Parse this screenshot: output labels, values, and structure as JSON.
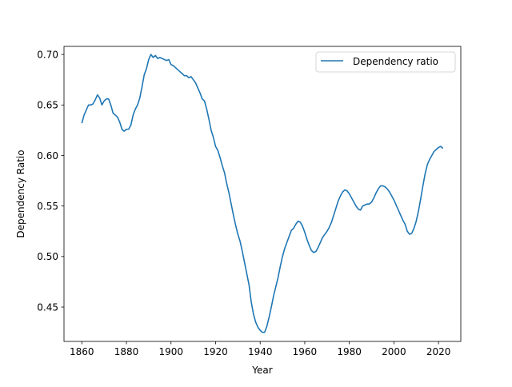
{
  "chart_data": {
    "type": "line",
    "xlabel": "Year",
    "ylabel": "Dependency Ratio",
    "xlim": [
      1852,
      2030
    ],
    "ylim": [
      0.416,
      0.708
    ],
    "xticks": [
      1860,
      1880,
      1900,
      1920,
      1940,
      1960,
      1980,
      2000,
      2020
    ],
    "yticks": [
      0.45,
      0.5,
      0.55,
      0.6,
      0.65,
      0.7
    ],
    "xtick_labels": [
      "1860",
      "1880",
      "1900",
      "1920",
      "1940",
      "1960",
      "1980",
      "2000",
      "2020"
    ],
    "ytick_labels": [
      "0.45",
      "0.50",
      "0.55",
      "0.60",
      "0.65",
      "0.70"
    ],
    "grid": false,
    "legend": {
      "position": "top-right"
    },
    "series": [
      {
        "name": "Dependency ratio",
        "color": "#1f77b4",
        "x": [
          1860,
          1861,
          1862,
          1863,
          1864,
          1865,
          1866,
          1867,
          1868,
          1869,
          1870,
          1871,
          1872,
          1873,
          1874,
          1875,
          1876,
          1877,
          1878,
          1879,
          1880,
          1881,
          1882,
          1883,
          1884,
          1885,
          1886,
          1887,
          1888,
          1889,
          1890,
          1891,
          1892,
          1893,
          1894,
          1895,
          1896,
          1897,
          1898,
          1899,
          1900,
          1901,
          1902,
          1903,
          1904,
          1905,
          1906,
          1907,
          1908,
          1909,
          1910,
          1911,
          1912,
          1913,
          1914,
          1915,
          1916,
          1917,
          1918,
          1919,
          1920,
          1921,
          1922,
          1923,
          1924,
          1925,
          1926,
          1927,
          1928,
          1929,
          1930,
          1931,
          1932,
          1933,
          1934,
          1935,
          1936,
          1937,
          1938,
          1939,
          1940,
          1941,
          1942,
          1943,
          1944,
          1945,
          1946,
          1947,
          1948,
          1949,
          1950,
          1951,
          1952,
          1953,
          1954,
          1955,
          1956,
          1957,
          1958,
          1959,
          1960,
          1961,
          1962,
          1963,
          1964,
          1965,
          1966,
          1967,
          1968,
          1969,
          1970,
          1971,
          1972,
          1973,
          1974,
          1975,
          1976,
          1977,
          1978,
          1979,
          1980,
          1981,
          1982,
          1983,
          1984,
          1985,
          1986,
          1987,
          1988,
          1989,
          1990,
          1991,
          1992,
          1993,
          1994,
          1995,
          1996,
          1997,
          1998,
          1999,
          2000,
          2001,
          2002,
          2003,
          2004,
          2005,
          2006,
          2007,
          2008,
          2009,
          2010,
          2011,
          2012,
          2013,
          2014,
          2015,
          2016,
          2017,
          2018,
          2019,
          2020,
          2021,
          2022
        ],
        "values": [
          0.632,
          0.64,
          0.645,
          0.65,
          0.65,
          0.651,
          0.655,
          0.66,
          0.657,
          0.65,
          0.654,
          0.656,
          0.656,
          0.65,
          0.642,
          0.64,
          0.638,
          0.633,
          0.626,
          0.624,
          0.626,
          0.626,
          0.63,
          0.64,
          0.646,
          0.65,
          0.657,
          0.668,
          0.68,
          0.686,
          0.695,
          0.7,
          0.697,
          0.699,
          0.696,
          0.697,
          0.696,
          0.695,
          0.694,
          0.695,
          0.69,
          0.689,
          0.687,
          0.685,
          0.683,
          0.681,
          0.679,
          0.679,
          0.677,
          0.678,
          0.675,
          0.672,
          0.667,
          0.662,
          0.656,
          0.654,
          0.646,
          0.636,
          0.625,
          0.618,
          0.609,
          0.605,
          0.598,
          0.59,
          0.583,
          0.572,
          0.563,
          0.552,
          0.541,
          0.531,
          0.522,
          0.515,
          0.505,
          0.494,
          0.483,
          0.472,
          0.455,
          0.443,
          0.435,
          0.43,
          0.427,
          0.425,
          0.425,
          0.431,
          0.44,
          0.45,
          0.461,
          0.47,
          0.479,
          0.49,
          0.5,
          0.508,
          0.514,
          0.52,
          0.526,
          0.528,
          0.532,
          0.535,
          0.534,
          0.53,
          0.524,
          0.517,
          0.511,
          0.506,
          0.504,
          0.505,
          0.509,
          0.514,
          0.519,
          0.522,
          0.525,
          0.529,
          0.534,
          0.541,
          0.548,
          0.555,
          0.56,
          0.564,
          0.566,
          0.565,
          0.562,
          0.558,
          0.554,
          0.55,
          0.547,
          0.546,
          0.55,
          0.551,
          0.552,
          0.552,
          0.554,
          0.558,
          0.563,
          0.567,
          0.57,
          0.57,
          0.569,
          0.567,
          0.564,
          0.56,
          0.556,
          0.551,
          0.546,
          0.541,
          0.536,
          0.532,
          0.525,
          0.522,
          0.523,
          0.528,
          0.535,
          0.545,
          0.557,
          0.57,
          0.582,
          0.591,
          0.596,
          0.6,
          0.604,
          0.606,
          0.608,
          0.609,
          0.607
        ]
      }
    ]
  }
}
